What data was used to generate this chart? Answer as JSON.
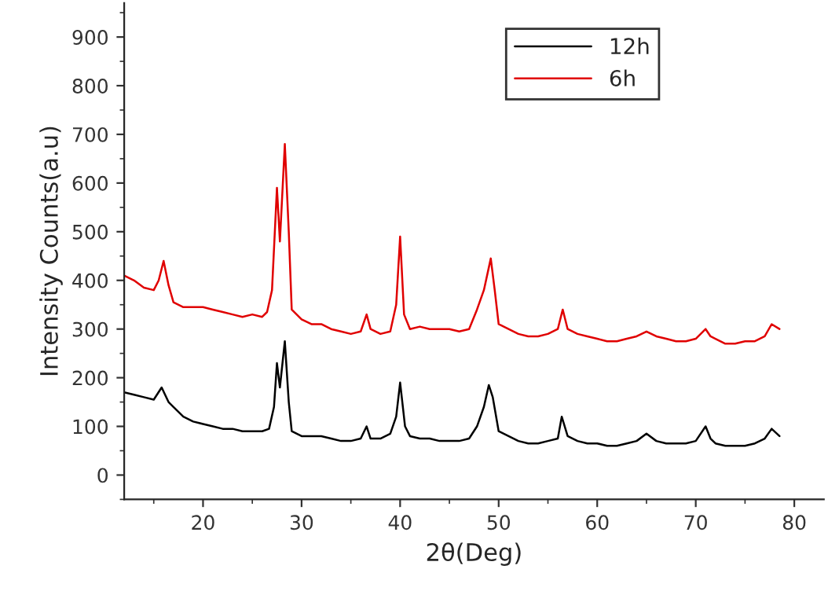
{
  "chart_data": {
    "type": "line",
    "xlabel": "2θ(Deg)",
    "ylabel": "Intensity Counts(a.u)",
    "xlim": [
      12,
      83
    ],
    "ylim": [
      -50,
      970
    ],
    "xticks": [
      20,
      30,
      40,
      50,
      60,
      70,
      80
    ],
    "yticks": [
      0,
      100,
      200,
      300,
      400,
      500,
      600,
      700,
      800,
      900
    ],
    "grid": false,
    "legend": "top right",
    "marker": "none",
    "line_style": "solid",
    "series": [
      {
        "name": "12h",
        "color": "#000000",
        "x": [
          12,
          13,
          14,
          15,
          15.8,
          16.5,
          17,
          18,
          19,
          20,
          21,
          22,
          23,
          24,
          25,
          26,
          26.7,
          27.2,
          27.5,
          27.8,
          28.3,
          28.7,
          29,
          30,
          31,
          32,
          33,
          34,
          35,
          36,
          36.6,
          37,
          38,
          39,
          39.6,
          40,
          40.5,
          41,
          42,
          43,
          44,
          45,
          46,
          47,
          47.8,
          48.5,
          49,
          49.4,
          50,
          51,
          52,
          53,
          54,
          55,
          56,
          56.4,
          57,
          58,
          59,
          60,
          61,
          62,
          63,
          64,
          65,
          66,
          67,
          68,
          69,
          70,
          71,
          71.5,
          72,
          73,
          74,
          75,
          76,
          77,
          77.7,
          78.5
        ],
        "values": [
          170,
          165,
          160,
          155,
          180,
          150,
          140,
          120,
          110,
          105,
          100,
          95,
          95,
          90,
          90,
          90,
          95,
          140,
          230,
          180,
          275,
          150,
          90,
          80,
          80,
          80,
          75,
          70,
          70,
          75,
          100,
          75,
          75,
          85,
          120,
          190,
          100,
          80,
          75,
          75,
          70,
          70,
          70,
          75,
          100,
          140,
          185,
          160,
          90,
          80,
          70,
          65,
          65,
          70,
          75,
          120,
          80,
          70,
          65,
          65,
          60,
          60,
          65,
          70,
          85,
          70,
          65,
          65,
          65,
          70,
          100,
          75,
          65,
          60,
          60,
          60,
          65,
          75,
          95,
          80
        ]
      },
      {
        "name": "6h",
        "color": "#e00000",
        "x": [
          12,
          13,
          14,
          15,
          15.5,
          16,
          16.5,
          17,
          18,
          19,
          20,
          21,
          22,
          23,
          24,
          25,
          26,
          26.5,
          27,
          27.5,
          27.8,
          28.3,
          28.7,
          29,
          30,
          31,
          32,
          33,
          34,
          35,
          36,
          36.6,
          37,
          38,
          39,
          39.6,
          40,
          40.4,
          41,
          42,
          43,
          44,
          45,
          46,
          47,
          47.8,
          48.5,
          49.2,
          49.6,
          50,
          51,
          52,
          53,
          54,
          55,
          56,
          56.5,
          57,
          58,
          59,
          60,
          61,
          62,
          63,
          64,
          65,
          66,
          67,
          68,
          69,
          70,
          71,
          71.5,
          72,
          73,
          74,
          75,
          76,
          77,
          77.7,
          78.5
        ],
        "values": [
          410,
          400,
          385,
          380,
          400,
          440,
          390,
          355,
          345,
          345,
          345,
          340,
          335,
          330,
          325,
          330,
          325,
          335,
          380,
          590,
          480,
          680,
          500,
          340,
          320,
          310,
          310,
          300,
          295,
          290,
          295,
          330,
          300,
          290,
          295,
          350,
          490,
          330,
          300,
          305,
          300,
          300,
          300,
          295,
          300,
          340,
          380,
          445,
          380,
          310,
          300,
          290,
          285,
          285,
          290,
          300,
          340,
          300,
          290,
          285,
          280,
          275,
          275,
          280,
          285,
          295,
          285,
          280,
          275,
          275,
          280,
          300,
          285,
          280,
          270,
          270,
          275,
          275,
          285,
          310,
          300
        ]
      }
    ]
  }
}
